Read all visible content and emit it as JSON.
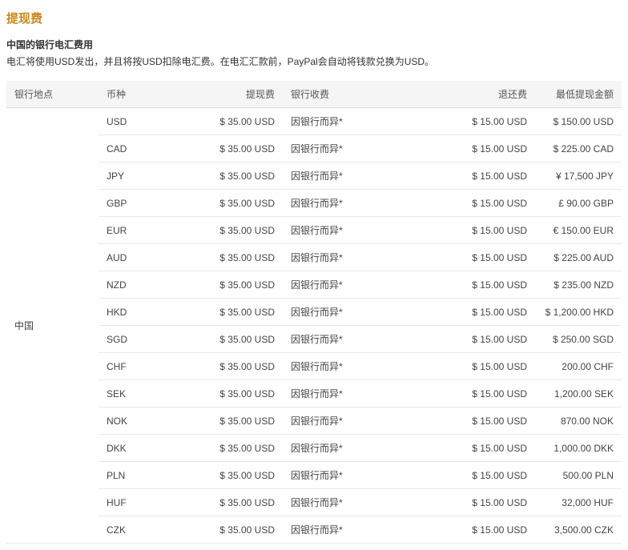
{
  "heading": "提现费",
  "subtitle": "中国的银行电汇费用",
  "description": "电汇将使用USD发出，并且将按USD扣除电汇费。在电汇汇款前，PayPal会自动将钱款兑换为USD。",
  "columns": {
    "location": "银行地点",
    "currency": "币种",
    "withdrawal_fee": "提现费",
    "bank_fee": "银行收费",
    "return_fee": "退还费",
    "min_amount": "最低提现金额"
  },
  "location_label": "中国",
  "rows": [
    {
      "currency": "USD",
      "wfee": "$ 35.00 USD",
      "bfee": "因银行而异*",
      "rfee": "$ 15.00 USD",
      "min": "$ 150.00 USD"
    },
    {
      "currency": "CAD",
      "wfee": "$ 35.00 USD",
      "bfee": "因银行而异*",
      "rfee": "$ 15.00 USD",
      "min": "$ 225.00 CAD"
    },
    {
      "currency": "JPY",
      "wfee": "$ 35.00 USD",
      "bfee": "因银行而异*",
      "rfee": "$ 15.00 USD",
      "min": "¥ 17,500 JPY"
    },
    {
      "currency": "GBP",
      "wfee": "$ 35.00 USD",
      "bfee": "因银行而异*",
      "rfee": "$ 15.00 USD",
      "min": "£ 90.00 GBP"
    },
    {
      "currency": "EUR",
      "wfee": "$ 35.00 USD",
      "bfee": "因银行而异*",
      "rfee": "$ 15.00 USD",
      "min": "€ 150.00 EUR"
    },
    {
      "currency": "AUD",
      "wfee": "$ 35.00 USD",
      "bfee": "因银行而异*",
      "rfee": "$ 15.00 USD",
      "min": "$ 225.00 AUD"
    },
    {
      "currency": "NZD",
      "wfee": "$ 35.00 USD",
      "bfee": "因银行而异*",
      "rfee": "$ 15.00 USD",
      "min": "$ 235.00 NZD"
    },
    {
      "currency": "HKD",
      "wfee": "$ 35.00 USD",
      "bfee": "因银行而异*",
      "rfee": "$ 15.00 USD",
      "min": "$ 1,200.00 HKD"
    },
    {
      "currency": "SGD",
      "wfee": "$ 35.00 USD",
      "bfee": "因银行而异*",
      "rfee": "$ 15.00 USD",
      "min": "$ 250.00 SGD"
    },
    {
      "currency": "CHF",
      "wfee": "$ 35.00 USD",
      "bfee": "因银行而异*",
      "rfee": "$ 15.00 USD",
      "min": "200.00 CHF"
    },
    {
      "currency": "SEK",
      "wfee": "$ 35.00 USD",
      "bfee": "因银行而异*",
      "rfee": "$ 15.00 USD",
      "min": "1,200.00 SEK"
    },
    {
      "currency": "NOK",
      "wfee": "$ 35.00 USD",
      "bfee": "因银行而异*",
      "rfee": "$ 15.00 USD",
      "min": "870.00 NOK"
    },
    {
      "currency": "DKK",
      "wfee": "$ 35.00 USD",
      "bfee": "因银行而异*",
      "rfee": "$ 15.00 USD",
      "min": "1,000.00 DKK"
    },
    {
      "currency": "PLN",
      "wfee": "$ 35.00 USD",
      "bfee": "因银行而异*",
      "rfee": "$ 15.00 USD",
      "min": "500.00 PLN"
    },
    {
      "currency": "HUF",
      "wfee": "$ 35.00 USD",
      "bfee": "因银行而异*",
      "rfee": "$ 15.00 USD",
      "min": "32,000 HUF"
    },
    {
      "currency": "CZK",
      "wfee": "$ 35.00 USD",
      "bfee": "因银行而异*",
      "rfee": "$ 15.00 USD",
      "min": "3,500.00 CZK"
    }
  ]
}
